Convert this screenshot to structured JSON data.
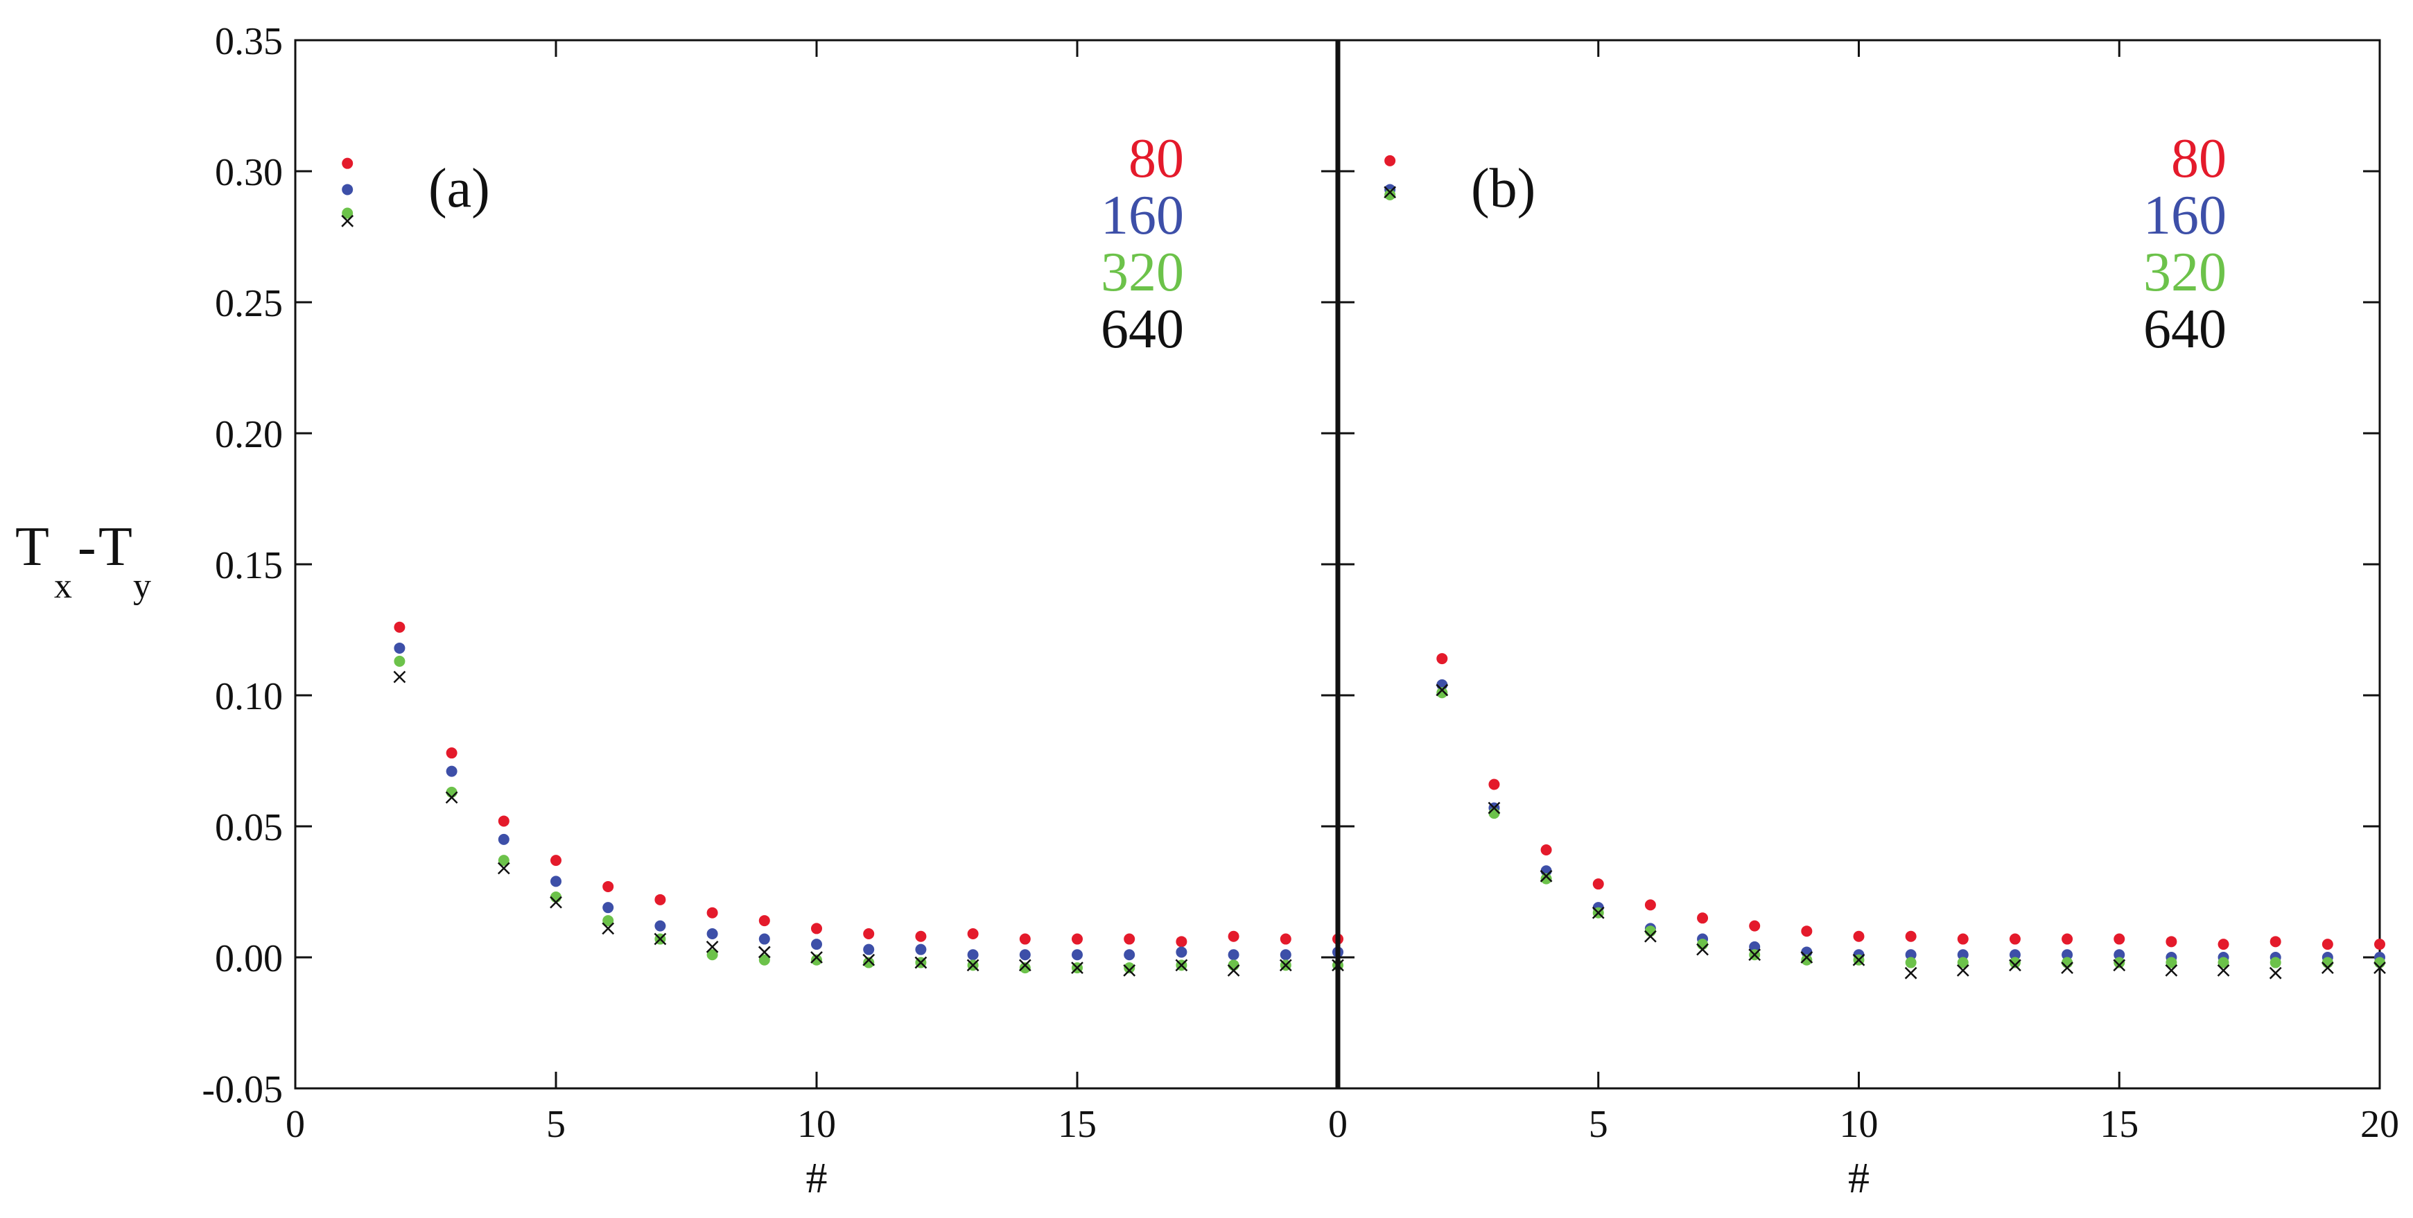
{
  "chart_data": [
    {
      "type": "scatter",
      "panel_label": "(a)",
      "xlabel": "#",
      "ylabel": {
        "main1": "T",
        "sub1": "x",
        "dash": "-",
        "main2": "T",
        "sub2": "y"
      },
      "xlim": [
        0,
        20
      ],
      "ylim": [
        -0.05,
        0.35
      ],
      "x_ticks": [
        0,
        5,
        10,
        15
      ],
      "y_ticks": [
        "-0.05",
        "0.00",
        "0.05",
        "0.10",
        "0.15",
        "0.20",
        "0.25",
        "0.30",
        "0.35"
      ],
      "legend": [
        "80",
        "160",
        "320",
        "640"
      ],
      "legend_placement": "top-right",
      "grid": false,
      "x": [
        1,
        2,
        3,
        4,
        5,
        6,
        7,
        8,
        9,
        10,
        11,
        12,
        13,
        14,
        15,
        16,
        17,
        18,
        19,
        20
      ],
      "series": [
        {
          "name": "80",
          "color": "#e41a2b",
          "marker": "dot",
          "values": [
            0.303,
            0.126,
            0.078,
            0.052,
            0.037,
            0.027,
            0.022,
            0.017,
            0.014,
            0.011,
            0.009,
            0.008,
            0.009,
            0.007,
            0.007,
            0.007,
            0.006,
            0.008,
            0.007,
            0.007
          ]
        },
        {
          "name": "160",
          "color": "#3d4fa8",
          "marker": "dot",
          "values": [
            0.293,
            0.118,
            0.071,
            0.045,
            0.029,
            0.019,
            0.012,
            0.009,
            0.007,
            0.005,
            0.003,
            0.003,
            0.001,
            0.001,
            0.001,
            0.001,
            0.002,
            0.001,
            0.001,
            0.002
          ]
        },
        {
          "name": "320",
          "color": "#6cc24a",
          "marker": "dot",
          "values": [
            0.284,
            0.113,
            0.063,
            0.037,
            0.023,
            0.014,
            0.007,
            0.001,
            -0.001,
            -0.001,
            -0.002,
            -0.002,
            -0.003,
            -0.004,
            -0.004,
            -0.004,
            -0.003,
            -0.003,
            -0.003,
            -0.003
          ]
        },
        {
          "name": "640",
          "color": "#111111",
          "marker": "cross",
          "values": [
            0.281,
            0.107,
            0.061,
            0.034,
            0.021,
            0.011,
            0.007,
            0.004,
            0.002,
            0.0,
            -0.001,
            -0.002,
            -0.003,
            -0.003,
            -0.004,
            -0.005,
            -0.003,
            -0.005,
            -0.003,
            -0.003
          ]
        }
      ]
    },
    {
      "type": "scatter",
      "panel_label": "(b)",
      "xlabel": "#",
      "xlim": [
        0,
        20
      ],
      "ylim": [
        -0.05,
        0.35
      ],
      "x_ticks": [
        0,
        5,
        10,
        15,
        20
      ],
      "legend": [
        "80",
        "160",
        "320",
        "640"
      ],
      "legend_placement": "top-right",
      "grid": false,
      "x": [
        1,
        2,
        3,
        4,
        5,
        6,
        7,
        8,
        9,
        10,
        11,
        12,
        13,
        14,
        15,
        16,
        17,
        18,
        19,
        20
      ],
      "series": [
        {
          "name": "80",
          "color": "#e41a2b",
          "marker": "dot",
          "values": [
            0.304,
            0.114,
            0.066,
            0.041,
            0.028,
            0.02,
            0.015,
            0.012,
            0.01,
            0.008,
            0.008,
            0.007,
            0.007,
            0.007,
            0.007,
            0.006,
            0.005,
            0.006,
            0.005,
            0.005
          ]
        },
        {
          "name": "160",
          "color": "#3d4fa8",
          "marker": "dot",
          "values": [
            0.293,
            0.104,
            0.057,
            0.033,
            0.019,
            0.011,
            0.007,
            0.004,
            0.002,
            0.001,
            0.001,
            0.001,
            0.001,
            0.001,
            0.001,
            0.0,
            0.0,
            0.0,
            0.0,
            0.0
          ]
        },
        {
          "name": "320",
          "color": "#6cc24a",
          "marker": "dot",
          "values": [
            0.291,
            0.101,
            0.055,
            0.03,
            0.017,
            0.01,
            0.005,
            0.001,
            -0.001,
            -0.001,
            -0.002,
            -0.002,
            -0.002,
            -0.002,
            -0.002,
            -0.002,
            -0.002,
            -0.002,
            -0.002,
            -0.002
          ]
        },
        {
          "name": "640",
          "color": "#111111",
          "marker": "cross",
          "values": [
            0.292,
            0.102,
            0.057,
            0.031,
            0.017,
            0.008,
            0.003,
            0.001,
            0.0,
            -0.001,
            -0.006,
            -0.005,
            -0.003,
            -0.004,
            -0.003,
            -0.005,
            -0.005,
            -0.006,
            -0.004,
            -0.004
          ]
        }
      ]
    }
  ]
}
